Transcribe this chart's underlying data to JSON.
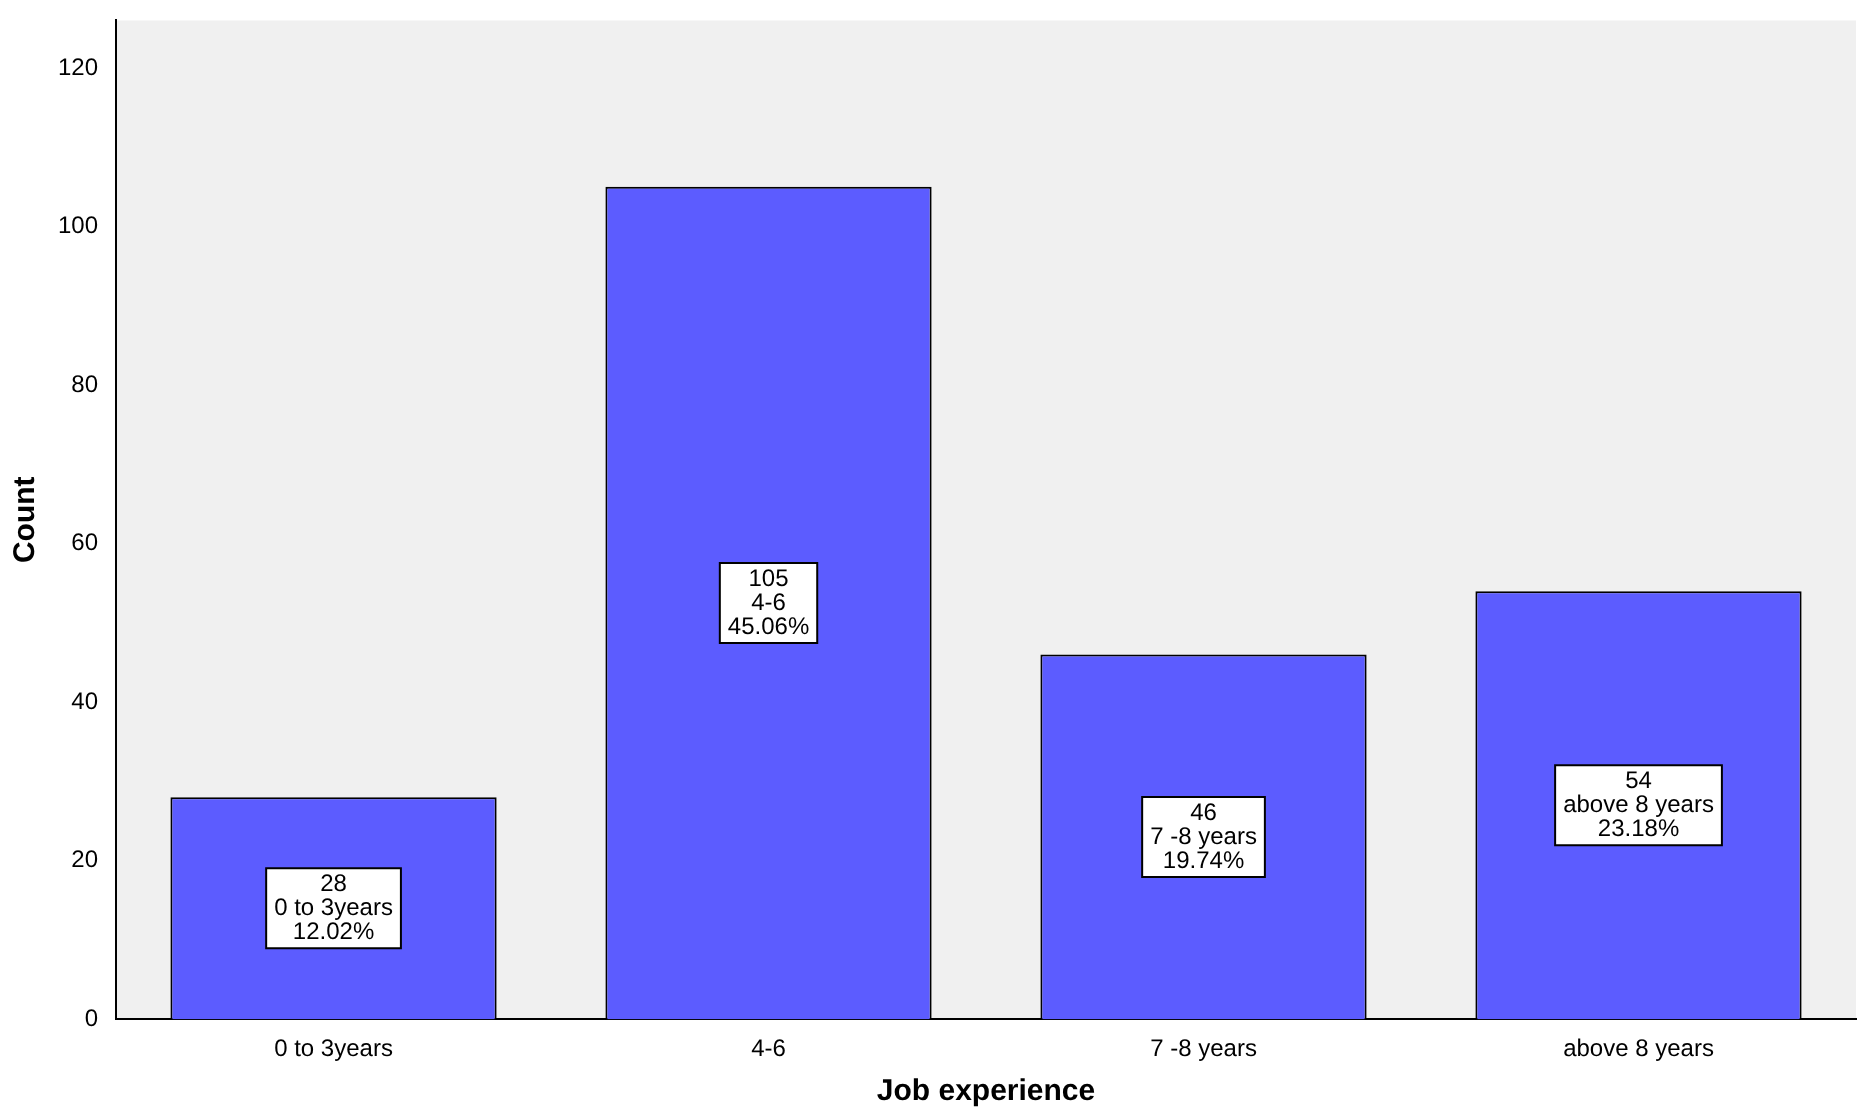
{
  "chart_data": {
    "type": "bar",
    "xlabel": "Job experience",
    "ylabel": "Count",
    "categories": [
      "0 to 3years",
      "4-6",
      "7 -8 years",
      "above 8 years"
    ],
    "values": [
      28,
      105,
      46,
      54
    ],
    "color": "#5c5cff",
    "value_labels": [
      "28\n0 to 3years\n12.02%",
      "105\n4-6\n45.06%",
      "46\n7 -8 years\n19.74%",
      "54\nabove 8 years\n23.18%"
    ],
    "ylim": [
      0,
      126
    ],
    "yticks": [
      0,
      20,
      40,
      60,
      80,
      100,
      120
    ],
    "grid": false,
    "legend": false
  }
}
